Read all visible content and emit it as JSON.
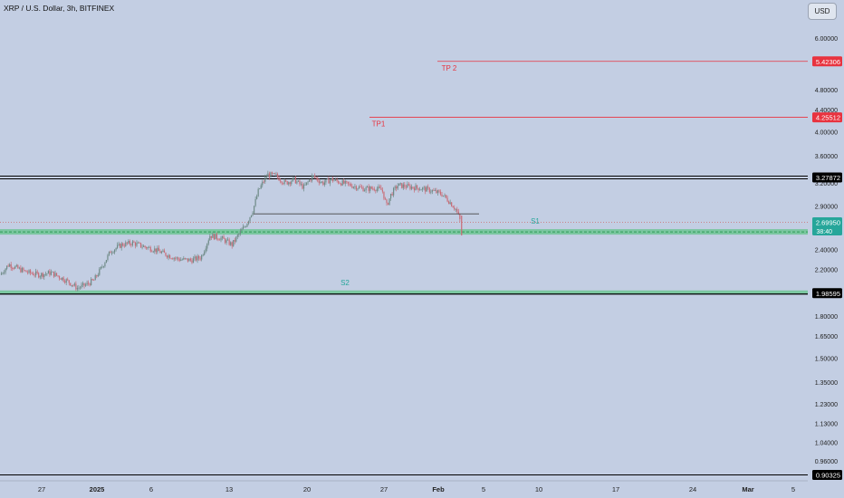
{
  "header": {
    "title": "XRP / U.S. Dollar, 3h, BITFINEX",
    "currency_button": "USD"
  },
  "colors": {
    "background": "#c3cee3",
    "up_candle": "#6e8a86",
    "down_candle": "#c96a75",
    "support_zone": "#3fbf6a",
    "support_label": "#26a69a",
    "target": "#e8333f",
    "level_black": "#000000",
    "current_price": "#26a69a"
  },
  "chart_data": {
    "type": "candlestick",
    "y_scale": "log",
    "y_ticks": [
      "6.00000",
      "4.80000",
      "4.40000",
      "4.00000",
      "3.60000",
      "3.20000",
      "2.90000",
      "2.40000",
      "2.20000",
      "1.80000",
      "1.65000",
      "1.50000",
      "1.35000",
      "1.23000",
      "1.13000",
      "1.04000",
      "0.96000"
    ],
    "x_ticks": [
      "27",
      "2025",
      "6",
      "13",
      "20",
      "27",
      "Feb",
      "5",
      "10",
      "17",
      "24",
      "Mar",
      "5"
    ],
    "x_tick_bold": [
      "2025",
      "Feb",
      "Mar"
    ],
    "levels": [
      {
        "name": "tp2",
        "label": "TP 2",
        "price": "5.42306",
        "style": "red-line"
      },
      {
        "name": "tp1",
        "label": "TP1",
        "price": "4.25512",
        "style": "red-line"
      },
      {
        "name": "resistance",
        "price": "3.27872",
        "style": "black-zone"
      },
      {
        "name": "s1",
        "label": "S1",
        "price": "2.59",
        "style": "green-zone"
      },
      {
        "name": "s2",
        "label": "S2",
        "price": "1.98595",
        "style": "green-zone"
      },
      {
        "name": "bottom",
        "price": "0.90325",
        "style": "black-line"
      }
    ],
    "current_price": {
      "value": "2.69950",
      "countdown": "38:40"
    },
    "neckline_price": 2.8,
    "price_path": [
      {
        "t": 0,
        "p": 2.15
      },
      {
        "t": 0.8,
        "p": 2.25
      },
      {
        "t": 1.8,
        "p": 2.2
      },
      {
        "t": 2.6,
        "p": 2.17
      },
      {
        "t": 3.6,
        "p": 2.15
      },
      {
        "t": 4.6,
        "p": 2.17
      },
      {
        "t": 5.6,
        "p": 2.12
      },
      {
        "t": 6.3,
        "p": 2.08
      },
      {
        "t": 7.0,
        "p": 2.03
      },
      {
        "t": 7.8,
        "p": 2.06
      },
      {
        "t": 8.5,
        "p": 2.1
      },
      {
        "t": 9.2,
        "p": 2.22
      },
      {
        "t": 10.0,
        "p": 2.38
      },
      {
        "t": 11.0,
        "p": 2.45
      },
      {
        "t": 12.0,
        "p": 2.47
      },
      {
        "t": 13.0,
        "p": 2.43
      },
      {
        "t": 14.0,
        "p": 2.4
      },
      {
        "t": 15.2,
        "p": 2.34
      },
      {
        "t": 16.2,
        "p": 2.3
      },
      {
        "t": 17.3,
        "p": 2.29
      },
      {
        "t": 18.2,
        "p": 2.32
      },
      {
        "t": 19.0,
        "p": 2.55
      },
      {
        "t": 20.0,
        "p": 2.52
      },
      {
        "t": 21.0,
        "p": 2.45
      },
      {
        "t": 21.6,
        "p": 2.56
      },
      {
        "t": 22.3,
        "p": 2.68
      },
      {
        "t": 22.9,
        "p": 2.85
      },
      {
        "t": 23.4,
        "p": 3.1
      },
      {
        "t": 24.2,
        "p": 3.32
      },
      {
        "t": 25.0,
        "p": 3.3
      },
      {
        "t": 25.8,
        "p": 3.2
      },
      {
        "t": 26.6,
        "p": 3.25
      },
      {
        "t": 27.5,
        "p": 3.14
      },
      {
        "t": 28.3,
        "p": 3.3
      },
      {
        "t": 29.2,
        "p": 3.2
      },
      {
        "t": 30.0,
        "p": 3.25
      },
      {
        "t": 31.0,
        "p": 3.2
      },
      {
        "t": 32.0,
        "p": 3.16
      },
      {
        "t": 33.0,
        "p": 3.12
      },
      {
        "t": 34.0,
        "p": 3.13
      },
      {
        "t": 34.6,
        "p": 3.1
      },
      {
        "t": 35.0,
        "p": 2.9
      },
      {
        "t": 35.4,
        "p": 3.05
      },
      {
        "t": 36.0,
        "p": 3.17
      },
      {
        "t": 37.0,
        "p": 3.15
      },
      {
        "t": 38.0,
        "p": 3.13
      },
      {
        "t": 39.0,
        "p": 3.1
      },
      {
        "t": 40.0,
        "p": 3.05
      },
      {
        "t": 40.7,
        "p": 2.95
      },
      {
        "t": 41.3,
        "p": 2.85
      },
      {
        "t": 41.7,
        "p": 2.7
      }
    ]
  }
}
